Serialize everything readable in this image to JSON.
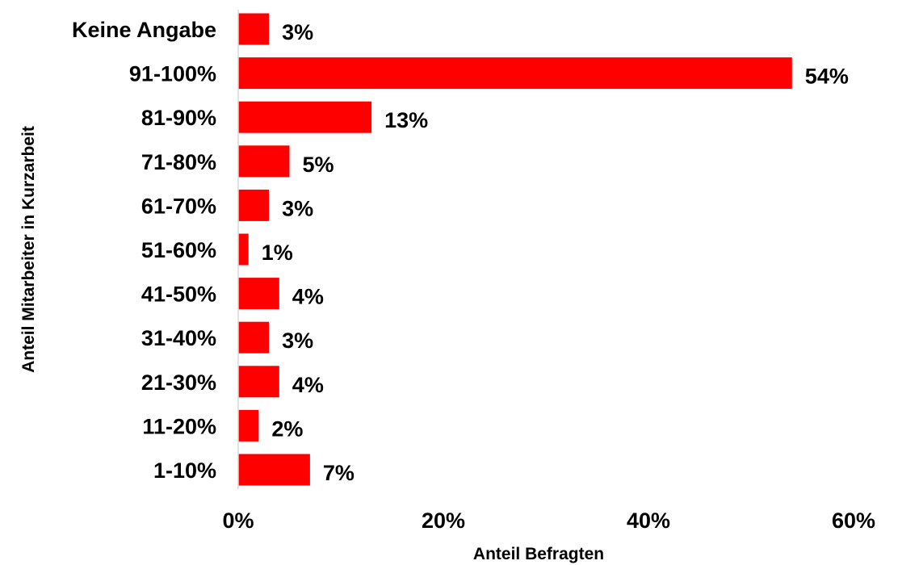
{
  "chart_data": {
    "type": "bar",
    "orientation": "horizontal",
    "categories": [
      "Keine Angabe",
      "91-100%",
      "81-90%",
      "71-80%",
      "61-70%",
      "51-60%",
      "41-50%",
      "31-40%",
      "21-30%",
      "11-20%",
      "1-10%"
    ],
    "values": [
      3,
      54,
      13,
      5,
      3,
      1,
      4,
      3,
      4,
      2,
      7
    ],
    "value_labels": [
      "3%",
      "54%",
      "13%",
      "5%",
      "3%",
      "1%",
      "4%",
      "3%",
      "4%",
      "2%",
      "7%"
    ],
    "title": "",
    "xlabel": "Anteil Befragten",
    "ylabel": "Anteil Mitarbeiter in Kurzarbeit",
    "xlim": [
      0,
      60
    ],
    "x_ticks": [
      0,
      20,
      40,
      60
    ],
    "x_tick_labels": [
      "0%",
      "20%",
      "40%",
      "60%"
    ],
    "grid": false,
    "legend": "none",
    "bar_color": "#ff0000",
    "axis_color": "#d9d9d9"
  }
}
